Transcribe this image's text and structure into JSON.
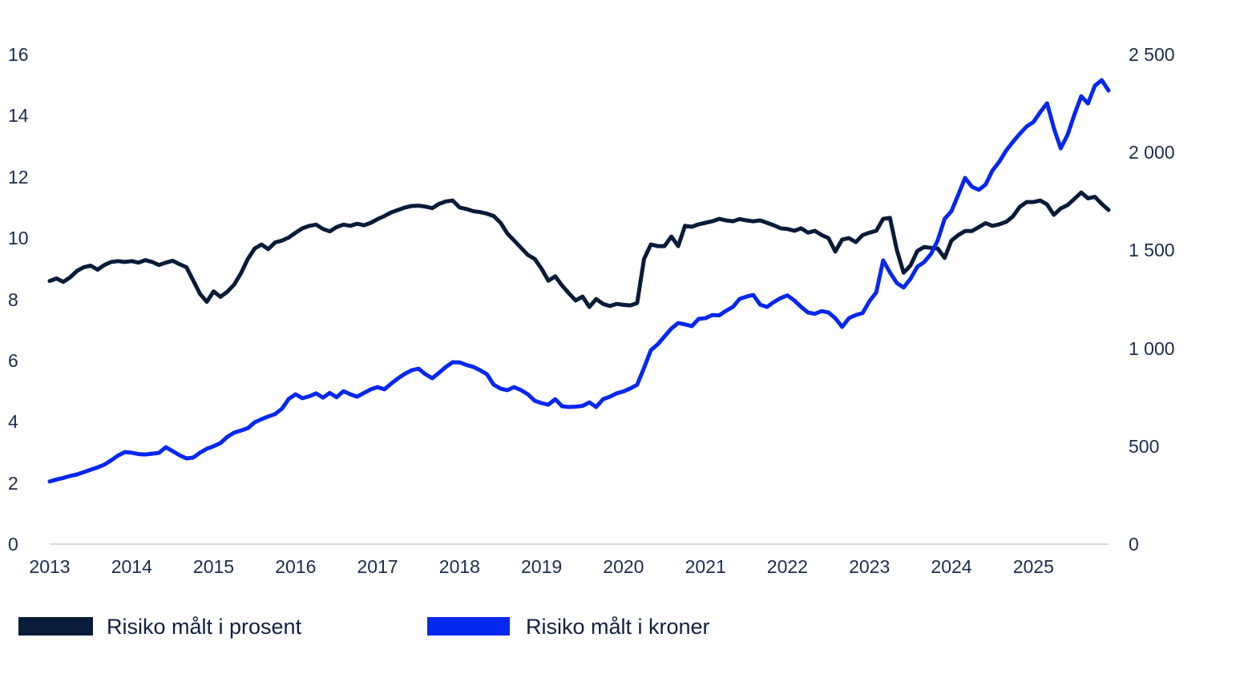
{
  "colors": {
    "series_prosent": "#081b38",
    "series_kroner": "#0627f0",
    "axis_line": "#d9d9de",
    "tick_text": "#1c2b4c"
  },
  "legend": {
    "prosent_label": "Risiko målt i prosent",
    "kroner_label": "Risiko målt i kroner"
  },
  "chart_data": {
    "type": "line",
    "title": "",
    "x_frequency": "monthly",
    "x_range": [
      "2013",
      "2025"
    ],
    "years": [
      "2013",
      "2014",
      "2015",
      "2016",
      "2017",
      "2018",
      "2019",
      "2020",
      "2021",
      "2022",
      "2023",
      "2024",
      "2025"
    ],
    "left_axis": {
      "label": "",
      "min": 0,
      "max": 16,
      "tick_values": [
        0,
        2,
        4,
        6,
        8,
        10,
        12,
        14,
        16
      ],
      "tick_labels": [
        "0",
        "2",
        "4",
        "6",
        "8",
        "10",
        "12",
        "14",
        "16"
      ]
    },
    "right_axis": {
      "label": "",
      "min": 0,
      "max": 2500,
      "tick_values": [
        0,
        500,
        1000,
        1500,
        2000,
        2500
      ],
      "tick_labels": [
        "0",
        "500",
        "1 000",
        "1 500",
        "2 000",
        "2 500"
      ]
    },
    "grid": false,
    "legend_position": "bottom-left",
    "series": [
      {
        "name": "Risiko målt i prosent",
        "axis": "left",
        "color": "#081b38",
        "values": [
          8.6,
          8.68,
          8.57,
          8.72,
          8.93,
          9.05,
          9.1,
          8.97,
          9.12,
          9.22,
          9.25,
          9.22,
          9.25,
          9.2,
          9.28,
          9.22,
          9.12,
          9.2,
          9.26,
          9.15,
          9.05,
          8.62,
          8.18,
          7.92,
          8.26,
          8.08,
          8.25,
          8.48,
          8.85,
          9.32,
          9.66,
          9.79,
          9.64,
          9.86,
          9.92,
          10.02,
          10.18,
          10.32,
          10.4,
          10.44,
          10.3,
          10.22,
          10.36,
          10.44,
          10.4,
          10.47,
          10.42,
          10.5,
          10.62,
          10.72,
          10.84,
          10.92,
          11.0,
          11.05,
          11.06,
          11.03,
          10.98,
          11.12,
          11.2,
          11.23,
          11.0,
          10.95,
          10.88,
          10.85,
          10.8,
          10.72,
          10.5,
          10.15,
          9.92,
          9.68,
          9.45,
          9.32,
          9.0,
          8.61,
          8.75,
          8.45,
          8.2,
          7.96,
          8.09,
          7.75,
          8.01,
          7.85,
          7.78,
          7.85,
          7.82,
          7.8,
          7.88,
          9.32,
          9.79,
          9.74,
          9.74,
          10.05,
          9.74,
          10.4,
          10.37,
          10.45,
          10.5,
          10.55,
          10.63,
          10.58,
          10.55,
          10.62,
          10.58,
          10.55,
          10.58,
          10.5,
          10.42,
          10.32,
          10.3,
          10.24,
          10.32,
          10.18,
          10.24,
          10.1,
          10.0,
          9.56,
          9.95,
          10.0,
          9.87,
          10.1,
          10.18,
          10.24,
          10.63,
          10.66,
          9.62,
          8.87,
          9.1,
          9.58,
          9.71,
          9.68,
          9.66,
          9.35,
          9.92,
          10.1,
          10.23,
          10.23,
          10.36,
          10.49,
          10.4,
          10.45,
          10.53,
          10.71,
          11.02,
          11.18,
          11.18,
          11.23,
          11.1,
          10.76,
          10.97,
          11.08,
          11.28,
          11.49,
          11.3,
          11.35,
          11.12,
          10.92
        ]
      },
      {
        "name": "Risiko målt i kroner",
        "axis": "right",
        "color": "#0627f0",
        "values": [
          320,
          330,
          338,
          348,
          356,
          368,
          380,
          392,
          406,
          428,
          452,
          470,
          467,
          460,
          458,
          462,
          466,
          495,
          475,
          454,
          438,
          442,
          467,
          487,
          500,
          516,
          548,
          569,
          580,
          592,
          622,
          638,
          652,
          664,
          692,
          742,
          765,
          745,
          755,
          770,
          748,
          772,
          750,
          781,
          765,
          753,
          772,
          790,
          802,
          790,
          820,
          847,
          870,
          888,
          896,
          868,
          847,
          875,
          905,
          929,
          928,
          915,
          905,
          888,
          868,
          814,
          794,
          786,
          802,
          786,
          765,
          732,
          720,
          712,
          740,
          704,
          700,
          702,
          706,
          724,
          700,
          740,
          753,
          770,
          780,
          795,
          814,
          900,
          990,
          1020,
          1060,
          1101,
          1129,
          1122,
          1113,
          1150,
          1154,
          1170,
          1168,
          1191,
          1211,
          1252,
          1264,
          1272,
          1223,
          1211,
          1236,
          1256,
          1270,
          1244,
          1211,
          1183,
          1176,
          1190,
          1183,
          1154,
          1109,
          1154,
          1170,
          1180,
          1240,
          1285,
          1449,
          1387,
          1334,
          1310,
          1354,
          1416,
          1440,
          1481,
          1551,
          1661,
          1700,
          1784,
          1870,
          1825,
          1809,
          1836,
          1907,
          1952,
          2009,
          2054,
          2095,
          2132,
          2155,
          2206,
          2251,
          2124,
          2021,
          2090,
          2193,
          2287,
          2250,
          2341,
          2369,
          2316
        ]
      }
    ]
  }
}
